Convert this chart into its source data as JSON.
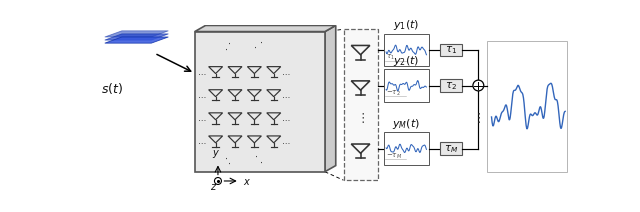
{
  "fig_width": 6.4,
  "fig_height": 2.12,
  "dpi": 100,
  "bg_color": "#ffffff",
  "panel_color": "#e8e8e8",
  "panel_edge": "#555555",
  "panel_side_color": "#cccccc",
  "antenna_color": "#333333",
  "signal_color": "#3366bb",
  "box_color": "#e8e8e8",
  "box_edge": "#555555",
  "text_color": "#111111",
  "dots_color": "#444444",
  "plane_colors": [
    "#2244bb",
    "#2244cc",
    "#3355dd"
  ],
  "plane_alphas": [
    0.55,
    0.7,
    0.85
  ]
}
